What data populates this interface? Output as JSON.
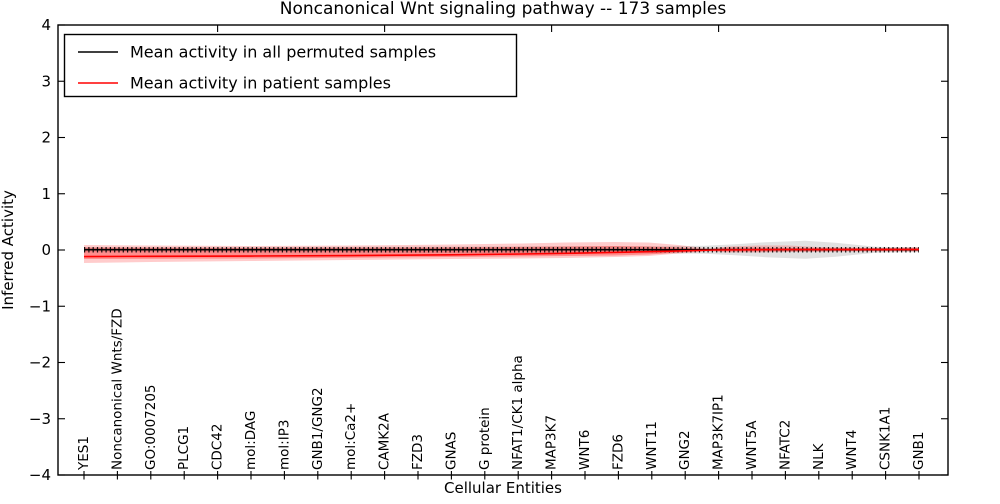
{
  "title": "Noncanonical Wnt signaling pathway -- 173 samples",
  "legend": {
    "position": "upper left",
    "items": [
      {
        "label": "Mean activity in all permuted samples",
        "color": "#000000"
      },
      {
        "label": "Mean activity in patient samples",
        "color": "#ff0000"
      }
    ]
  },
  "chart_data": {
    "type": "line",
    "title": "Noncanonical Wnt signaling pathway -- 173 samples",
    "xlabel": "Cellular Entities",
    "ylabel": "Inferred Activity",
    "ylim": [
      -4,
      4
    ],
    "yticks": [
      4,
      3,
      2,
      1,
      0,
      -1,
      -2,
      -3,
      -4
    ],
    "ytick_labels": [
      "4",
      "3",
      "2",
      "1",
      "0",
      "−1",
      "−2",
      "−3",
      "−4"
    ],
    "grid": false,
    "legend_position": "upper left",
    "categories": [
      "YES1",
      "Noncanonical Wnts/FZD",
      "GO:0007205",
      "PLCG1",
      "CDC42",
      "mol:DAG",
      "mol:IP3",
      "GNB1/GNG2",
      "mol:Ca2+",
      "CAMK2A",
      "FZD3",
      "GNAS",
      "G protein",
      "NFAT1/CK1 alpha",
      "MAP3K7",
      "WNT6",
      "FZD6",
      "WNT11",
      "GNG2",
      "MAP3K7IP1",
      "WNT5A",
      "NFATC2",
      "NLK",
      "WNT4",
      "CSNK1A1",
      "GNB1"
    ],
    "top_tick_positions": [
      4,
      9,
      14,
      19,
      24
    ],
    "series": [
      {
        "name": "Mean activity in all permuted samples",
        "color": "#000000",
        "marker": "tick",
        "x": [
          0,
          25
        ],
        "values": [
          0.005,
          0.005
        ]
      },
      {
        "name": "Mean activity in patient samples",
        "color": "#ff0000",
        "marker": "none",
        "x": [
          0,
          2,
          5,
          8,
          11,
          13.1,
          14.7,
          16.2,
          17.4,
          18.3,
          18.9,
          19.8,
          21,
          23,
          25
        ],
        "values": [
          -0.116,
          -0.112,
          -0.107,
          -0.098,
          -0.085,
          -0.071,
          -0.057,
          -0.039,
          -0.023,
          -0.009,
          0,
          0.004,
          0.007,
          0.007,
          0.009
        ]
      }
    ],
    "bands": [
      {
        "name": "permuted-samples-std-band",
        "color": "#888888",
        "opacity": 0.25,
        "x": [
          0,
          3.5,
          9.5,
          14,
          17,
          18.6,
          19.5,
          20.4,
          21.6,
          22.5,
          23.1,
          23.7,
          24.6,
          25
        ],
        "top": [
          0.05,
          0.05,
          0.058,
          0.067,
          0.067,
          0.076,
          0.103,
          0.138,
          0.165,
          0.129,
          0.094,
          0.058,
          0.05,
          0.05
        ],
        "bottom": [
          -0.04,
          -0.04,
          -0.048,
          -0.057,
          -0.057,
          -0.066,
          -0.093,
          -0.128,
          -0.155,
          -0.119,
          -0.084,
          -0.048,
          -0.04,
          -0.04
        ]
      },
      {
        "name": "patient-samples-std-band-outer",
        "color": "#ff0000",
        "opacity": 0.2,
        "x": [
          0,
          2,
          5,
          8,
          11,
          13.1,
          14.4,
          15.9,
          16.9,
          17.8,
          18.7,
          19.3,
          20.2,
          21.1,
          22,
          23,
          23.9,
          25
        ],
        "top": [
          0.089,
          0.08,
          0.071,
          0.08,
          0.098,
          0.116,
          0.133,
          0.142,
          0.133,
          0.089,
          0.027,
          0.062,
          0.08,
          0.08,
          0.053,
          0.044,
          0.036,
          0.053
        ],
        "bottom": [
          -0.231,
          -0.213,
          -0.196,
          -0.178,
          -0.16,
          -0.151,
          -0.142,
          -0.124,
          -0.107,
          -0.062,
          -0.027,
          -0.044,
          -0.044,
          -0.036,
          -0.036,
          -0.027,
          -0.027,
          -0.027
        ]
      },
      {
        "name": "patient-samples-std-band-inner",
        "color": "#ff0000",
        "opacity": 0.3,
        "x": [
          0,
          5,
          11,
          14.4,
          15.9,
          16.9,
          17.8,
          18.7,
          19.3,
          21,
          23,
          25
        ],
        "top": [
          0.044,
          0.036,
          0.044,
          0.062,
          0.071,
          0.062,
          0.044,
          0.012,
          0.044,
          0.036,
          0.036,
          0.036
        ],
        "bottom": [
          -0.16,
          -0.151,
          -0.124,
          -0.107,
          -0.098,
          -0.08,
          -0.044,
          -0.014,
          -0.027,
          -0.023,
          -0.018,
          -0.018
        ]
      }
    ]
  }
}
